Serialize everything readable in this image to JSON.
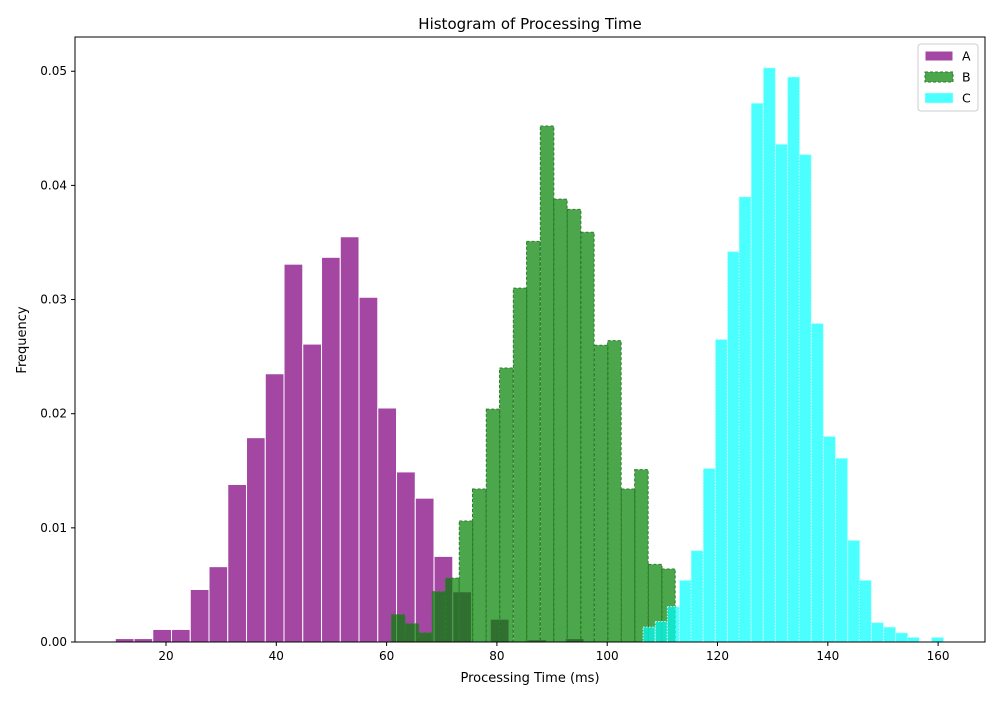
{
  "chart_data": {
    "type": "bar",
    "subtype": "histogram",
    "title": "Histogram of Processing Time",
    "xlabel": "Processing Time (ms)",
    "ylabel": "Frequency",
    "xlim": [
      3.5,
      168.5
    ],
    "ylim": [
      0,
      0.053
    ],
    "x_ticks": [
      20,
      40,
      60,
      80,
      100,
      120,
      140,
      160
    ],
    "y_ticks": [
      0.0,
      0.01,
      0.02,
      0.03,
      0.04,
      0.05
    ],
    "y_tick_labels": [
      "0.00",
      "0.01",
      "0.02",
      "0.03",
      "0.04",
      "0.05"
    ],
    "grid": false,
    "legend_position": "top-right",
    "series": [
      {
        "name": "A",
        "color": "#800080",
        "alpha": 0.72,
        "edgecolor": "#ffffff",
        "linestyle": "solid",
        "bin_width": 3.4,
        "x": [
          12.5,
          15.9,
          19.3,
          22.7,
          26.1,
          29.5,
          32.9,
          36.3,
          39.7,
          43.1,
          46.5,
          49.9,
          53.3,
          56.7,
          60.1,
          63.5,
          66.9,
          70.3,
          73.7,
          77.1,
          80.5,
          83.9,
          87.3,
          90.7,
          94.1
        ],
        "values": [
          0.0003,
          0.0003,
          0.0011,
          0.0011,
          0.0046,
          0.0066,
          0.0138,
          0.0179,
          0.0235,
          0.0331,
          0.0261,
          0.0337,
          0.0355,
          0.0302,
          0.0205,
          0.0149,
          0.0126,
          0.0075,
          0.0044,
          0.0,
          0.002,
          0.0,
          0.0002,
          0.0,
          0.0003
        ]
      },
      {
        "name": "B",
        "color": "#008000",
        "alpha": 0.7,
        "edgecolor": "#2e7d2e",
        "linestyle": "dashed",
        "bin_width": 2.45,
        "x": [
          62.1,
          64.6,
          67.0,
          69.5,
          71.9,
          74.4,
          76.8,
          79.3,
          81.7,
          84.2,
          86.6,
          89.1,
          91.5,
          94.0,
          96.4,
          98.9,
          101.3,
          103.8,
          106.2,
          108.7,
          111.1
        ],
        "values": [
          0.0024,
          0.0016,
          0.0008,
          0.0044,
          0.0056,
          0.0106,
          0.0134,
          0.0204,
          0.024,
          0.031,
          0.0351,
          0.0452,
          0.0388,
          0.0379,
          0.0359,
          0.026,
          0.0264,
          0.0134,
          0.0151,
          0.0068,
          0.0064
        ]
      },
      {
        "name": "C",
        "color": "#00ffff",
        "alpha": 0.7,
        "edgecolor": "#c8ffff",
        "linestyle": "dotted",
        "bin_width": 2.18,
        "x": [
          107.6,
          109.8,
          112.0,
          114.2,
          116.3,
          118.5,
          120.7,
          122.9,
          125.0,
          127.2,
          129.4,
          131.6,
          133.8,
          135.9,
          138.1,
          140.3,
          142.5,
          144.7,
          146.8,
          149.0,
          151.2,
          153.4,
          155.5,
          157.7,
          159.9
        ],
        "values": [
          0.0013,
          0.0018,
          0.0031,
          0.0054,
          0.008,
          0.0152,
          0.0265,
          0.0342,
          0.039,
          0.0472,
          0.0503,
          0.0436,
          0.0495,
          0.0427,
          0.0279,
          0.018,
          0.0161,
          0.0089,
          0.0054,
          0.0017,
          0.0013,
          0.0008,
          0.0004,
          0.0,
          0.0004
        ]
      }
    ]
  }
}
